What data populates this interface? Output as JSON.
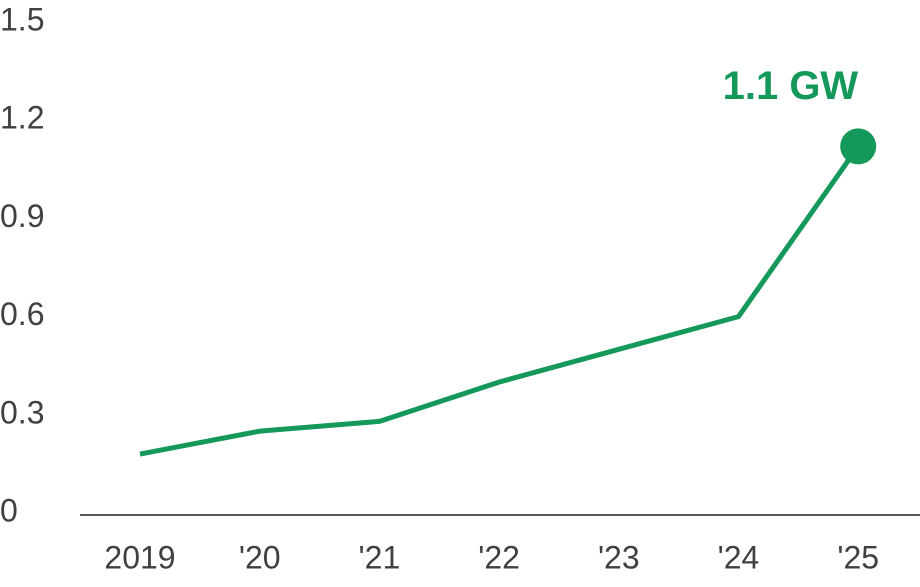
{
  "chart_data": {
    "type": "line",
    "categories": [
      "2019",
      "'20",
      "'21",
      "'22",
      "'23",
      "'24",
      "'25"
    ],
    "values": [
      0.18,
      0.25,
      0.28,
      0.4,
      0.5,
      0.6,
      1.12
    ],
    "value_labels": [
      null,
      null,
      null,
      null,
      null,
      null,
      "1.1 GW"
    ],
    "color": "#14995a",
    "ylim": [
      0,
      1.5
    ],
    "yticks": [
      0,
      0.3,
      0.6,
      0.9,
      1.2,
      1.5
    ],
    "grid": false
  }
}
